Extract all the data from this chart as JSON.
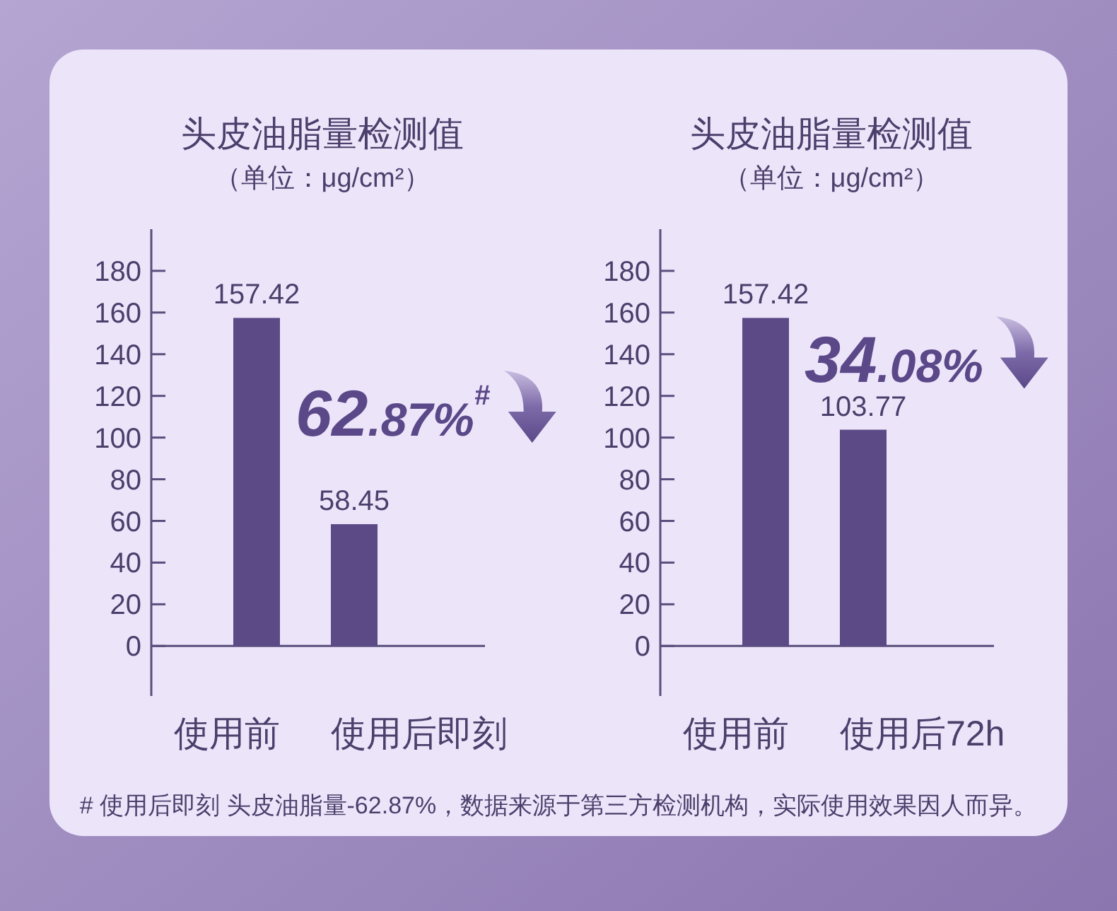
{
  "chart_data": [
    {
      "type": "bar",
      "title": "头皮油脂量检测值",
      "subtitle": "（单位：μg/cm²）",
      "categories": [
        "使用前",
        "使用后即刻"
      ],
      "values": [
        157.42,
        58.45
      ],
      "color": "#5c4a86",
      "ylim": [
        -24,
        200
      ],
      "yticks": [
        0,
        20,
        40,
        60,
        80,
        100,
        120,
        140,
        160,
        180
      ],
      "data_labels": true,
      "annotations": [
        "62.87%$^{#}$",
        "# 使用后即刻 头皮油脂量-62.87%，数据来源于第三方检测机构，实际使用效果因人而异。"
      ]
    },
    {
      "type": "bar",
      "title": "头皮油脂量检测值",
      "subtitle": "（单位：μg/cm²）",
      "categories": [
        "使用前",
        "使用后72h"
      ],
      "values": [
        157.42,
        103.77
      ],
      "color": "#5c4a86",
      "ylim": [
        -24,
        200
      ],
      "yticks": [
        0,
        20,
        40,
        60,
        80,
        100,
        120,
        140,
        160,
        180
      ],
      "data_labels": true,
      "annotations": [
        "34.08%"
      ]
    }
  ]
}
